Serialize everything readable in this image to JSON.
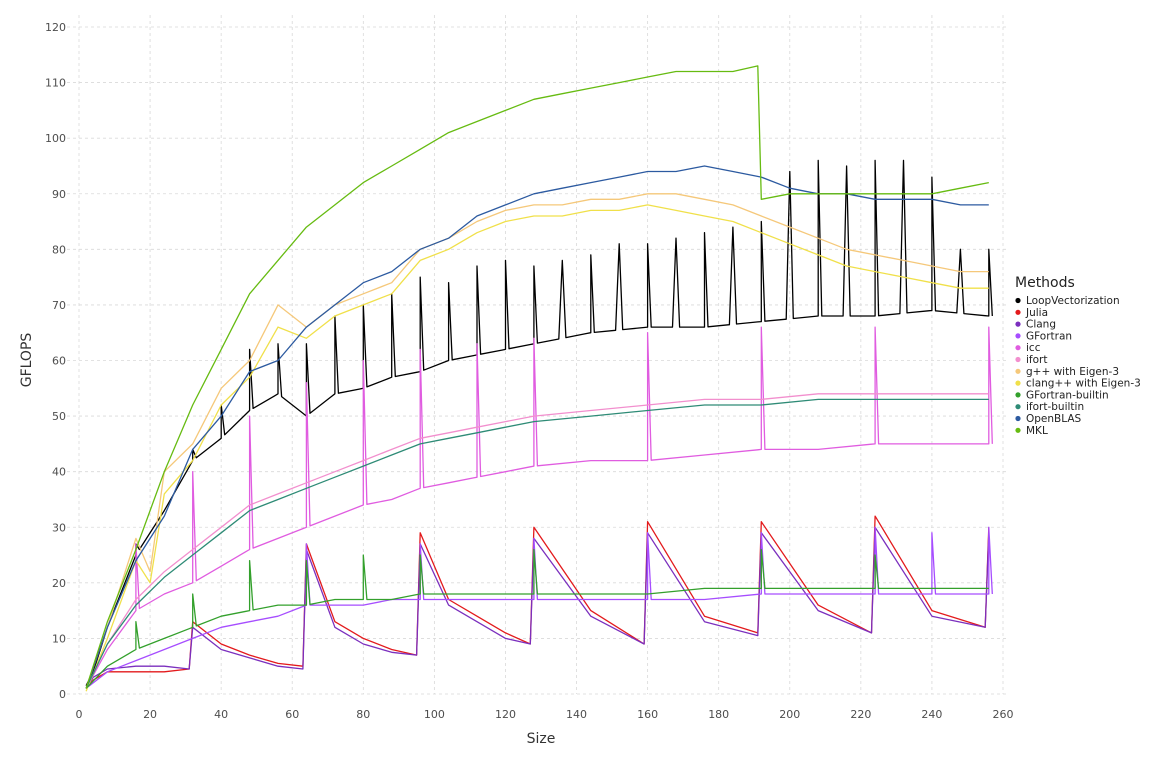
{
  "chart_data": {
    "type": "line",
    "title": "",
    "xlabel": "Size",
    "ylabel": "GFLOPS",
    "xlim": [
      0,
      260
    ],
    "ylim": [
      0,
      120
    ],
    "x_ticks": [
      0,
      20,
      40,
      60,
      80,
      100,
      120,
      140,
      160,
      180,
      200,
      220,
      240,
      260
    ],
    "y_ticks": [
      0,
      10,
      20,
      30,
      40,
      50,
      60,
      70,
      80,
      90,
      100,
      110,
      120
    ],
    "x_tick_labels": [
      "0",
      "20",
      "40",
      "60",
      "80",
      "100",
      "120",
      "140",
      "160",
      "180",
      "200",
      "220",
      "240",
      "260"
    ],
    "y_tick_labels": [
      "0",
      "10",
      "20",
      "30",
      "40",
      "50",
      "60",
      "70",
      "80",
      "90",
      "100",
      "110",
      "120"
    ],
    "grid": true,
    "legend": {
      "title": "Methods",
      "position": "right"
    },
    "x_values_note_free": true,
    "series": [
      {
        "name": "LoopVectorization",
        "color": "#000000",
        "x": [
          2,
          4,
          8,
          16,
          24,
          32,
          40,
          48,
          56,
          64,
          72,
          80,
          88,
          96,
          104,
          112,
          120,
          128,
          144,
          160,
          176,
          192,
          208,
          224,
          240,
          256
        ],
        "y": [
          1.5,
          4,
          12,
          25,
          33,
          42,
          46,
          51,
          54,
          50,
          54,
          55,
          57,
          58,
          60,
          61,
          62,
          63,
          65,
          66,
          66,
          67,
          68,
          68,
          69,
          68
        ],
        "spikes": [
          [
            16,
            27
          ],
          [
            32,
            44
          ],
          [
            40,
            52
          ],
          [
            48,
            62
          ],
          [
            56,
            63
          ],
          [
            64,
            63
          ],
          [
            72,
            68
          ],
          [
            80,
            70
          ],
          [
            88,
            72
          ],
          [
            96,
            75
          ],
          [
            104,
            74
          ],
          [
            112,
            77
          ],
          [
            120,
            78
          ],
          [
            128,
            77
          ],
          [
            136,
            78
          ],
          [
            144,
            79
          ],
          [
            152,
            81
          ],
          [
            160,
            81
          ],
          [
            168,
            82
          ],
          [
            176,
            83
          ],
          [
            184,
            84
          ],
          [
            192,
            85
          ],
          [
            200,
            94
          ],
          [
            208,
            96
          ],
          [
            216,
            95
          ],
          [
            224,
            96
          ],
          [
            232,
            96
          ],
          [
            240,
            93
          ],
          [
            248,
            80
          ],
          [
            256,
            80
          ]
        ]
      },
      {
        "name": "Julia",
        "color": "#e31a1c",
        "x": [
          2,
          4,
          8,
          16,
          24,
          31,
          32,
          40,
          48,
          56,
          63,
          64,
          72,
          80,
          88,
          95,
          96,
          104,
          112,
          120,
          127,
          128,
          144,
          159,
          160,
          176,
          191,
          192,
          208,
          223,
          224,
          240,
          255,
          256
        ],
        "y": [
          1,
          2.5,
          4,
          4,
          4,
          4.5,
          13,
          9,
          7,
          5.5,
          5,
          27,
          13,
          10,
          8,
          7,
          29,
          17,
          14,
          11,
          9,
          30,
          15,
          9,
          31,
          14,
          11,
          31,
          16,
          11,
          32,
          15,
          12,
          30
        ]
      },
      {
        "name": "Clang",
        "color": "#7b2fbe",
        "x": [
          2,
          4,
          8,
          16,
          24,
          31,
          32,
          40,
          48,
          56,
          63,
          64,
          72,
          80,
          88,
          95,
          96,
          104,
          112,
          120,
          127,
          128,
          144,
          159,
          160,
          176,
          191,
          192,
          208,
          223,
          224,
          240,
          255,
          256
        ],
        "y": [
          1,
          3,
          4.5,
          5,
          5,
          4.5,
          12,
          8,
          6.5,
          5,
          4.5,
          26,
          12,
          9,
          7.5,
          7,
          27,
          16,
          13,
          10,
          9,
          28,
          14,
          9,
          29,
          13,
          10.5,
          29,
          15,
          11,
          30,
          14,
          12,
          29
        ]
      },
      {
        "name": "GFortran",
        "color": "#a64dff",
        "x": [
          2,
          8,
          16,
          24,
          32,
          40,
          48,
          56,
          64,
          72,
          80,
          88,
          96,
          104,
          112,
          120,
          128,
          144,
          160,
          176,
          192,
          208,
          224,
          240,
          256
        ],
        "y": [
          1,
          4,
          6,
          8,
          10,
          12,
          13,
          14,
          16,
          16,
          16,
          17,
          17,
          17,
          17,
          17,
          17,
          17,
          17,
          17,
          18,
          18,
          18,
          18,
          18
        ],
        "spikes": [
          [
            64,
            27
          ],
          [
            96,
            27
          ],
          [
            128,
            28
          ],
          [
            160,
            29
          ],
          [
            192,
            29
          ],
          [
            224,
            30
          ],
          [
            240,
            29
          ],
          [
            256,
            30
          ]
        ]
      },
      {
        "name": "icc",
        "color": "#e05ce0",
        "x": [
          2,
          8,
          16,
          24,
          32,
          40,
          48,
          56,
          64,
          72,
          80,
          88,
          96,
          104,
          112,
          120,
          128,
          144,
          160,
          176,
          192,
          208,
          224,
          240,
          256
        ],
        "y": [
          1,
          8,
          15,
          18,
          20,
          23,
          26,
          28,
          30,
          32,
          34,
          35,
          37,
          38,
          39,
          40,
          41,
          42,
          42,
          43,
          44,
          44,
          45,
          45,
          45
        ],
        "spikes": [
          [
            16,
            27
          ],
          [
            32,
            40
          ],
          [
            48,
            50
          ],
          [
            64,
            56
          ],
          [
            80,
            60
          ],
          [
            96,
            62
          ],
          [
            112,
            63
          ],
          [
            128,
            64
          ],
          [
            160,
            65
          ],
          [
            192,
            66
          ],
          [
            224,
            66
          ],
          [
            256,
            66
          ]
        ]
      },
      {
        "name": "ifort",
        "color": "#f28fce",
        "x": [
          2,
          8,
          16,
          24,
          32,
          40,
          48,
          56,
          64,
          72,
          80,
          88,
          96,
          104,
          112,
          120,
          128,
          144,
          160,
          176,
          192,
          208,
          224,
          240,
          256
        ],
        "y": [
          1,
          9,
          17,
          22,
          26,
          30,
          34,
          36,
          38,
          40,
          42,
          44,
          46,
          47,
          48,
          49,
          50,
          51,
          52,
          53,
          53,
          54,
          54,
          54,
          54
        ]
      },
      {
        "name": "g++ with Eigen-3",
        "color": "#f5c87a",
        "x": [
          2,
          8,
          16,
          20,
          24,
          32,
          40,
          48,
          56,
          64,
          72,
          80,
          88,
          96,
          104,
          112,
          120,
          128,
          136,
          144,
          152,
          160,
          168,
          176,
          184,
          192,
          200,
          208,
          216,
          224,
          232,
          240,
          248,
          256
        ],
        "y": [
          1,
          12,
          28,
          22,
          40,
          45,
          55,
          60,
          70,
          66,
          70,
          72,
          74,
          80,
          82,
          85,
          87,
          88,
          88,
          89,
          89,
          90,
          90,
          89,
          88,
          86,
          84,
          82,
          80,
          79,
          78,
          77,
          76,
          76
        ]
      },
      {
        "name": "clang++ with Eigen-3",
        "color": "#f0e04a",
        "x": [
          2,
          8,
          16,
          20,
          24,
          32,
          40,
          48,
          56,
          64,
          72,
          80,
          88,
          96,
          104,
          112,
          120,
          128,
          136,
          144,
          152,
          160,
          168,
          176,
          184,
          192,
          200,
          208,
          216,
          224,
          232,
          240,
          248,
          256
        ],
        "y": [
          0.5,
          10,
          24,
          20,
          36,
          42,
          52,
          57,
          66,
          64,
          68,
          70,
          72,
          78,
          80,
          83,
          85,
          86,
          86,
          87,
          87,
          88,
          87,
          86,
          85,
          83,
          81,
          79,
          77,
          76,
          75,
          74,
          73,
          73
        ]
      },
      {
        "name": "GFortran-builtin",
        "color": "#33a02c",
        "x": [
          2,
          8,
          16,
          24,
          32,
          40,
          48,
          56,
          64,
          72,
          80,
          88,
          96,
          104,
          112,
          120,
          128,
          144,
          160,
          176,
          192,
          208,
          224,
          240,
          256
        ],
        "y": [
          1,
          5,
          8,
          10,
          12,
          14,
          15,
          16,
          16,
          17,
          17,
          17,
          18,
          18,
          18,
          18,
          18,
          18,
          18,
          19,
          19,
          19,
          19,
          19,
          19
        ],
        "spikes": [
          [
            16,
            13
          ],
          [
            32,
            18
          ],
          [
            48,
            24
          ],
          [
            64,
            24
          ],
          [
            80,
            25
          ],
          [
            96,
            25
          ],
          [
            128,
            26
          ],
          [
            192,
            26
          ],
          [
            224,
            25
          ]
        ]
      },
      {
        "name": "ifort-builtin",
        "color": "#2e8b76",
        "x": [
          2,
          8,
          16,
          24,
          32,
          40,
          48,
          56,
          64,
          72,
          80,
          88,
          96,
          104,
          112,
          120,
          128,
          144,
          160,
          176,
          192,
          208,
          224,
          240,
          256
        ],
        "y": [
          1,
          9,
          16,
          21,
          25,
          29,
          33,
          35,
          37,
          39,
          41,
          43,
          45,
          46,
          47,
          48,
          49,
          50,
          51,
          52,
          52,
          53,
          53,
          53,
          53
        ]
      },
      {
        "name": "OpenBLAS",
        "color": "#2c5aa0",
        "x": [
          2,
          8,
          16,
          24,
          32,
          40,
          48,
          56,
          64,
          72,
          80,
          88,
          96,
          104,
          112,
          120,
          128,
          136,
          144,
          152,
          160,
          168,
          176,
          184,
          192,
          200,
          208,
          216,
          224,
          232,
          240,
          248,
          256
        ],
        "y": [
          1,
          12,
          24,
          32,
          44,
          50,
          58,
          60,
          66,
          70,
          74,
          76,
          80,
          82,
          86,
          88,
          90,
          91,
          92,
          93,
          94,
          94,
          95,
          94,
          93,
          91,
          90,
          90,
          89,
          89,
          89,
          88,
          88
        ]
      },
      {
        "name": "MKL",
        "color": "#66bb11",
        "x": [
          2,
          8,
          16,
          24,
          32,
          40,
          48,
          56,
          64,
          72,
          80,
          88,
          96,
          104,
          112,
          120,
          128,
          136,
          144,
          152,
          160,
          168,
          176,
          184,
          191,
          192,
          200,
          208,
          216,
          224,
          232,
          240,
          248,
          256
        ],
        "y": [
          1,
          13,
          26,
          40,
          52,
          62,
          72,
          78,
          84,
          88,
          92,
          95,
          98,
          101,
          103,
          105,
          107,
          108,
          109,
          110,
          111,
          112,
          112,
          112,
          113,
          89,
          90,
          90,
          90,
          90,
          90,
          90,
          91,
          92
        ]
      }
    ]
  }
}
